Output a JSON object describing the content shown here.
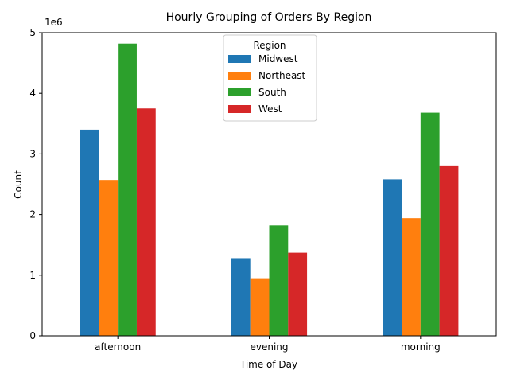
{
  "chart_data": {
    "type": "bar",
    "title": "Hourly Grouping of Orders By Region",
    "xlabel": "Time of Day",
    "ylabel": "Count",
    "y_offset_text": "1e6",
    "categories": [
      "afternoon",
      "evening",
      "morning"
    ],
    "ylim": [
      0,
      5.0
    ],
    "yticks": [
      "0",
      "1",
      "2",
      "3",
      "4",
      "5"
    ],
    "series": [
      {
        "name": "Midwest",
        "color": "#1f77b4",
        "values": [
          3.4,
          1.28,
          2.58
        ]
      },
      {
        "name": "Northeast",
        "color": "#ff7f0e",
        "values": [
          2.57,
          0.95,
          1.94
        ]
      },
      {
        "name": "South",
        "color": "#2ca02c",
        "values": [
          4.82,
          1.82,
          3.68
        ]
      },
      {
        "name": "West",
        "color": "#d62728",
        "values": [
          3.75,
          1.37,
          2.81
        ]
      }
    ],
    "legend": {
      "title": "Region",
      "placement": "top-center"
    },
    "grid": false
  }
}
